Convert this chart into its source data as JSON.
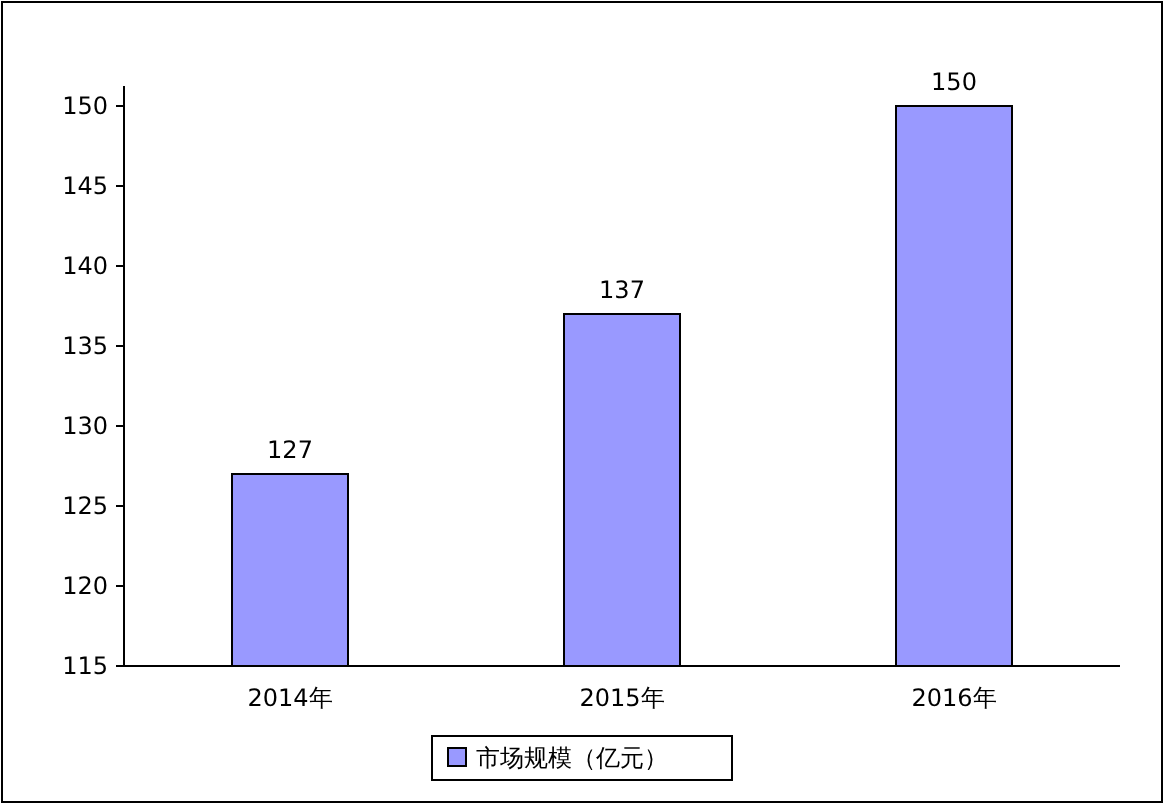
{
  "chart_data": {
    "type": "bar",
    "categories": [
      "2014年",
      "2015年",
      "2016年"
    ],
    "series": [
      {
        "name": "市场规模（亿元）",
        "color": "#9999ff",
        "values": [
          127,
          137,
          150
        ]
      }
    ],
    "ylim": [
      115,
      150
    ],
    "yticks": [
      115,
      120,
      125,
      130,
      135,
      140,
      145,
      150
    ],
    "data_labels": true,
    "legend": "bottom"
  }
}
